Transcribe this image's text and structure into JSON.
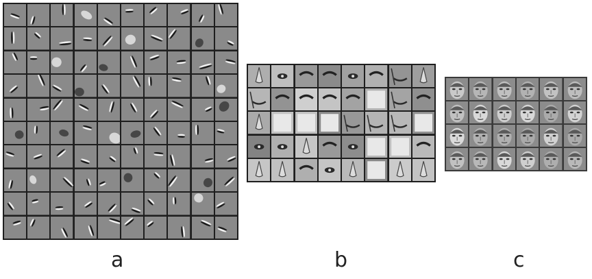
{
  "panels": [
    {
      "id": "a",
      "label": "a",
      "grid": {
        "rows": 10,
        "cols": 10
      },
      "kind": "edge-filters"
    },
    {
      "id": "b",
      "label": "b",
      "grid": {
        "rows": 5,
        "cols": 8
      },
      "kind": "face-parts"
    },
    {
      "id": "c",
      "label": "c",
      "grid": {
        "rows": 4,
        "cols": 6
      },
      "kind": "faces"
    }
  ],
  "colors": {
    "filter_bg": "#8a8a8a",
    "parts_bg": "#a9a9a9",
    "faces_bg": "#b0b0b0",
    "grid_line": "#1e1e1e",
    "label": "#222222"
  }
}
